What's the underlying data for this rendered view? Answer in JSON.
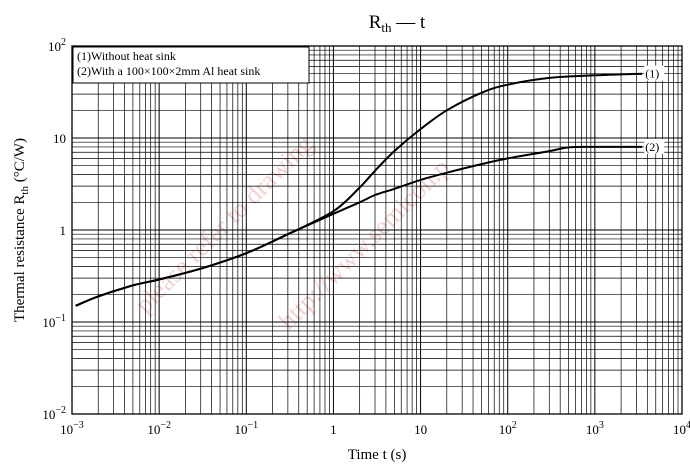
{
  "chart_data": {
    "type": "line",
    "title_main": "R",
    "title_sub": "th",
    "title_rest": " — t",
    "xlabel": "Time  t  (s)",
    "ylabel_main": "Thermal resistance  R",
    "ylabel_sub": "th",
    "ylabel_unit": "  (°C/W)",
    "x_scale": "log",
    "y_scale": "log",
    "xlim": [
      0.001,
      10000
    ],
    "ylim": [
      0.01,
      100
    ],
    "grid": true,
    "x_ticks": [
      {
        "base": "10",
        "exp": "−3"
      },
      {
        "base": "10",
        "exp": "−2"
      },
      {
        "base": "10",
        "exp": "−1"
      },
      {
        "base": "1",
        "exp": ""
      },
      {
        "base": "10",
        "exp": ""
      },
      {
        "base": "10",
        "exp": "2"
      },
      {
        "base": "10",
        "exp": "3"
      },
      {
        "base": "10",
        "exp": "4"
      }
    ],
    "y_ticks": [
      {
        "base": "10",
        "exp": "−2"
      },
      {
        "base": "10",
        "exp": "−1"
      },
      {
        "base": "1",
        "exp": ""
      },
      {
        "base": "10",
        "exp": ""
      },
      {
        "base": "10",
        "exp": "2"
      }
    ],
    "legend": {
      "placement": "top-left",
      "entries": [
        "(1)Without heat sink",
        "(2)With a 100×100×2mm Al heat sink"
      ]
    },
    "series": [
      {
        "name": "(1)",
        "x": [
          0.0011,
          0.002,
          0.005,
          0.01,
          0.03,
          0.1,
          0.3,
          1,
          2,
          3,
          5,
          10,
          20,
          50,
          100,
          300,
          1000,
          3500
        ],
        "y": [
          0.15,
          0.19,
          0.25,
          0.29,
          0.38,
          0.56,
          0.9,
          1.6,
          2.9,
          4.4,
          7.2,
          12.5,
          20,
          31,
          38,
          45,
          48,
          50
        ]
      },
      {
        "name": "(2)",
        "x": [
          0.0011,
          0.002,
          0.005,
          0.01,
          0.03,
          0.1,
          0.3,
          1,
          2,
          3,
          5,
          10,
          20,
          50,
          100,
          300,
          500,
          1000,
          3500
        ],
        "y": [
          0.15,
          0.19,
          0.25,
          0.29,
          0.38,
          0.56,
          0.9,
          1.5,
          2.0,
          2.4,
          2.8,
          3.5,
          4.2,
          5.2,
          6.0,
          7.2,
          7.9,
          8.0,
          8.0
        ]
      }
    ]
  },
  "colors": {
    "line": "#000000",
    "grid": "#000000",
    "watermark": "#e07a7a"
  },
  "watermark_text": [
    "please refer to drawing",
    "http://www.semicon.p"
  ]
}
